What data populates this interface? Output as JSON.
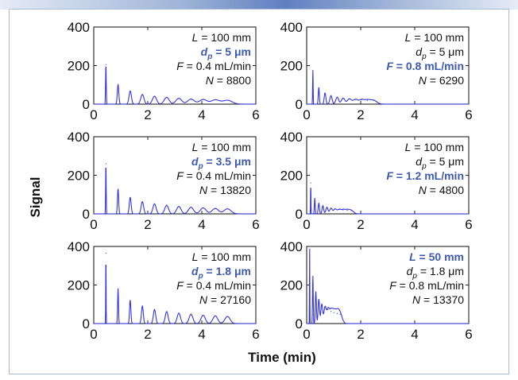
{
  "figure": {
    "xlabel": "Time (min)",
    "ylabel": "Signal"
  },
  "colors": {
    "signal": "#3434e0",
    "highlight": "#3d5ab0",
    "text": "#111111",
    "frame": "#a9bbd9"
  },
  "chart_data": [
    {
      "type": "line",
      "position": "top-left",
      "xlim": [
        0,
        6
      ],
      "ylim": [
        0,
        400
      ],
      "xticks": [
        "0",
        "2",
        "4",
        "6"
      ],
      "yticks": [
        "0",
        "200",
        "400"
      ],
      "peak_times": [
        0.45,
        0.9,
        1.35,
        1.8,
        2.25,
        2.7,
        3.15,
        3.6,
        4.05,
        4.5,
        4.95
      ],
      "peak_heights": [
        205,
        100,
        68,
        50,
        41,
        35,
        30,
        26,
        24,
        22,
        20
      ],
      "peak_width": 0.012,
      "width_growth": 0.016,
      "annotations": [
        {
          "var": "L",
          "sub": "",
          "value": " = 100 mm",
          "highlight": false
        },
        {
          "var": "d",
          "sub": "p",
          "value": " = 5 μm",
          "highlight": true
        },
        {
          "var": "F",
          "sub": "",
          "value": " = 0.4 mL/min",
          "highlight": false
        },
        {
          "var": "N",
          "sub": "",
          "value": " = 8800",
          "highlight": false
        }
      ]
    },
    {
      "type": "line",
      "position": "top-right",
      "xlim": [
        0,
        6
      ],
      "ylim": [
        0,
        400
      ],
      "xticks": [
        "0",
        "2",
        "4",
        "6"
      ],
      "yticks": [
        "0",
        "200",
        "400"
      ],
      "peak_times": [
        0.23,
        0.45,
        0.68,
        0.9,
        1.13,
        1.35,
        1.58,
        1.8,
        2.03,
        2.25,
        2.48
      ],
      "peak_heights": [
        175,
        85,
        58,
        44,
        36,
        31,
        27,
        24,
        22,
        20,
        19
      ],
      "peak_width": 0.009,
      "width_growth": 0.011,
      "annotations": [
        {
          "var": "L",
          "sub": "",
          "value": " = 100 mm",
          "highlight": false
        },
        {
          "var": "d",
          "sub": "p",
          "value": " = 5 μm",
          "highlight": false
        },
        {
          "var": "F",
          "sub": "",
          "value": " = 0.8 mL/min",
          "highlight": true
        },
        {
          "var": "N",
          "sub": "",
          "value": " = 6290",
          "highlight": false
        }
      ]
    },
    {
      "type": "line",
      "position": "middle-left",
      "xlim": [
        0,
        6
      ],
      "ylim": [
        0,
        400
      ],
      "xticks": [
        "0",
        "2",
        "4",
        "6"
      ],
      "yticks": [
        "0",
        "200",
        "400"
      ],
      "peak_times": [
        0.45,
        0.9,
        1.35,
        1.8,
        2.25,
        2.7,
        3.15,
        3.6,
        4.05,
        4.5,
        4.95
      ],
      "peak_heights": [
        260,
        128,
        85,
        63,
        52,
        44,
        38,
        34,
        31,
        28,
        26
      ],
      "peak_width": 0.01,
      "width_growth": 0.012,
      "annotations": [
        {
          "var": "L",
          "sub": "",
          "value": " = 100 mm",
          "highlight": false
        },
        {
          "var": "d",
          "sub": "p",
          "value": " = 3.5 μm",
          "highlight": true
        },
        {
          "var": "F",
          "sub": "",
          "value": " = 0.4 mL/min",
          "highlight": false
        },
        {
          "var": "N",
          "sub": "",
          "value": " = 13820",
          "highlight": false
        }
      ]
    },
    {
      "type": "line",
      "position": "middle-right",
      "xlim": [
        0,
        6
      ],
      "ylim": [
        0,
        400
      ],
      "xticks": [
        "0",
        "2",
        "4",
        "6"
      ],
      "yticks": [
        "0",
        "200",
        "400"
      ],
      "peak_times": [
        0.15,
        0.3,
        0.45,
        0.6,
        0.75,
        0.9,
        1.05,
        1.2,
        1.35,
        1.5,
        1.65
      ],
      "peak_heights": [
        160,
        80,
        55,
        42,
        34,
        29,
        25,
        22,
        20,
        18,
        17
      ],
      "peak_width": 0.007,
      "width_growth": 0.008,
      "annotations": [
        {
          "var": "L",
          "sub": "",
          "value": " = 100 mm",
          "highlight": false
        },
        {
          "var": "d",
          "sub": "p",
          "value": " = 5 μm",
          "highlight": false
        },
        {
          "var": "F",
          "sub": "",
          "value": " = 1.2 mL/min",
          "highlight": true
        },
        {
          "var": "N",
          "sub": "",
          "value": " = 4800",
          "highlight": false
        }
      ]
    },
    {
      "type": "line",
      "position": "bottom-left",
      "xlim": [
        0,
        6
      ],
      "ylim": [
        0,
        400
      ],
      "xticks": [
        "0",
        "2",
        "4",
        "6"
      ],
      "yticks": [
        "0",
        "200",
        "400"
      ],
      "peak_times": [
        0.45,
        0.9,
        1.35,
        1.8,
        2.25,
        2.7,
        3.15,
        3.6,
        4.05,
        4.5,
        4.95
      ],
      "peak_heights": [
        365,
        180,
        120,
        90,
        73,
        62,
        54,
        48,
        43,
        40,
        37
      ],
      "peak_width": 0.007,
      "width_growth": 0.009,
      "annotations": [
        {
          "var": "L",
          "sub": "",
          "value": " = 100 mm",
          "highlight": false
        },
        {
          "var": "d",
          "sub": "p",
          "value": " = 1.8 μm",
          "highlight": true
        },
        {
          "var": "F",
          "sub": "",
          "value": " = 0.4 mL/min",
          "highlight": false
        },
        {
          "var": "N",
          "sub": "",
          "value": " = 27160",
          "highlight": false
        }
      ]
    },
    {
      "type": "line",
      "position": "bottom-right",
      "xlim": [
        0,
        6
      ],
      "ylim": [
        0,
        400
      ],
      "xticks": [
        "0",
        "2",
        "4",
        "6"
      ],
      "yticks": [
        "0",
        "200",
        "400"
      ],
      "peak_times": [
        0.11,
        0.23,
        0.34,
        0.45,
        0.56,
        0.68,
        0.79,
        0.9,
        1.01,
        1.13,
        1.24
      ],
      "peak_heights": [
        400,
        245,
        165,
        125,
        100,
        84,
        72,
        63,
        57,
        52,
        48
      ],
      "peak_width": 0.006,
      "width_growth": 0.007,
      "annotations": [
        {
          "var": "L",
          "sub": "",
          "value": " = 50 mm",
          "highlight": true
        },
        {
          "var": "d",
          "sub": "p",
          "value": " = 1.8 μm",
          "highlight": false
        },
        {
          "var": "F",
          "sub": "",
          "value": " = 0.8 mL/min",
          "highlight": false
        },
        {
          "var": "N",
          "sub": "",
          "value": " = 13370",
          "highlight": false
        }
      ]
    }
  ]
}
